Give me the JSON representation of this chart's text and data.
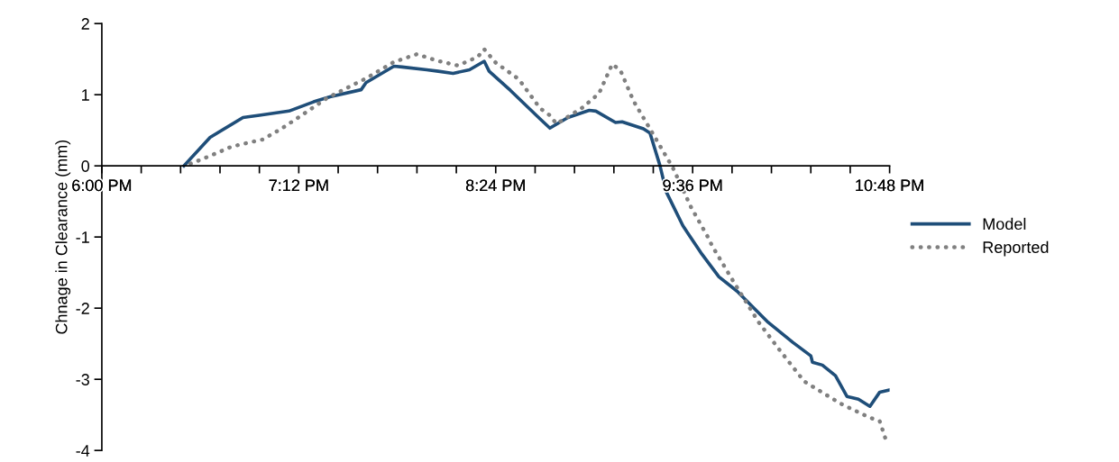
{
  "chart_data": {
    "type": "line",
    "ylabel": "Chnage in Clearance (mm)",
    "xlim": [
      18,
      22.8
    ],
    "ylim": [
      -4,
      2
    ],
    "yticks": [
      -4,
      -3,
      -2,
      -1,
      0,
      1,
      2
    ],
    "xticks": [
      {
        "value": 18,
        "label": "6:00 PM"
      },
      {
        "value": 18.24,
        "label": null
      },
      {
        "value": 18.48,
        "label": null
      },
      {
        "value": 18.72,
        "label": null
      },
      {
        "value": 18.96,
        "label": null
      },
      {
        "value": 19.2,
        "label": "7:12 PM"
      },
      {
        "value": 19.44,
        "label": null
      },
      {
        "value": 19.68,
        "label": null
      },
      {
        "value": 19.92,
        "label": null
      },
      {
        "value": 20.16,
        "label": null
      },
      {
        "value": 20.4,
        "label": "8:24 PM"
      },
      {
        "value": 20.64,
        "label": null
      },
      {
        "value": 20.88,
        "label": null
      },
      {
        "value": 21.12,
        "label": null
      },
      {
        "value": 21.36,
        "label": null
      },
      {
        "value": 21.6,
        "label": "9:36 PM"
      },
      {
        "value": 21.84,
        "label": null
      },
      {
        "value": 22.08,
        "label": null
      },
      {
        "value": 22.32,
        "label": null
      },
      {
        "value": 22.56,
        "label": null
      },
      {
        "value": 22.8,
        "label": "10:48 PM"
      }
    ],
    "legend": "right",
    "grid": false,
    "marker": "none",
    "series": [
      {
        "name": "Model",
        "color": "#1f4e79",
        "line_style": "solid",
        "x": [
          18.5,
          18.66,
          18.86,
          18.96,
          19.14,
          19.29,
          19.39,
          19.58,
          19.61,
          19.78,
          19.83,
          19.98,
          20.05,
          20.14,
          20.24,
          20.33,
          20.36,
          20.49,
          20.67,
          20.73,
          20.84,
          20.97,
          21.01,
          21.13,
          21.17,
          21.3,
          21.34,
          21.4,
          21.44,
          21.54,
          21.65,
          21.76,
          21.87,
          22.06,
          22.21,
          22.32,
          22.33,
          22.39,
          22.47,
          22.54,
          22.61,
          22.68,
          22.74,
          22.8
        ],
        "values": [
          0,
          0.4,
          0.68,
          0.71,
          0.77,
          0.9,
          0.97,
          1.07,
          1.17,
          1.4,
          1.39,
          1.35,
          1.33,
          1.3,
          1.35,
          1.47,
          1.33,
          1.06,
          0.66,
          0.53,
          0.68,
          0.78,
          0.77,
          0.61,
          0.62,
          0.52,
          0.46,
          0.01,
          -0.37,
          -0.84,
          -1.22,
          -1.56,
          -1.76,
          -2.2,
          -2.48,
          -2.67,
          -2.76,
          -2.8,
          -2.95,
          -3.24,
          -3.28,
          -3.38,
          -3.18,
          -3.15
        ]
      },
      {
        "name": "Reported",
        "color": "#808080",
        "line_style": "dotted",
        "x": [
          18.54,
          18.66,
          18.79,
          18.92,
          18.98,
          19.1,
          19.21,
          19.37,
          19.49,
          19.61,
          19.78,
          19.92,
          20.04,
          20.17,
          20.29,
          20.33,
          20.4,
          20.54,
          20.67,
          20.73,
          20.77,
          20.93,
          21.03,
          21.11,
          21.16,
          21.24,
          21.34,
          21.48,
          21.59,
          21.69,
          21.72,
          21.86,
          22.0,
          22.12,
          22.28,
          22.5,
          22.67,
          22.74,
          22.78
        ],
        "values": [
          0.03,
          0.14,
          0.27,
          0.34,
          0.37,
          0.53,
          0.7,
          0.95,
          1.09,
          1.23,
          1.46,
          1.57,
          1.48,
          1.41,
          1.53,
          1.64,
          1.45,
          1.22,
          0.81,
          0.71,
          0.59,
          0.82,
          1.02,
          1.43,
          1.34,
          0.91,
          0.52,
          -0.03,
          -0.58,
          -0.99,
          -1.13,
          -1.67,
          -2.19,
          -2.56,
          -3.03,
          -3.34,
          -3.53,
          -3.59,
          -3.87
        ]
      }
    ]
  }
}
